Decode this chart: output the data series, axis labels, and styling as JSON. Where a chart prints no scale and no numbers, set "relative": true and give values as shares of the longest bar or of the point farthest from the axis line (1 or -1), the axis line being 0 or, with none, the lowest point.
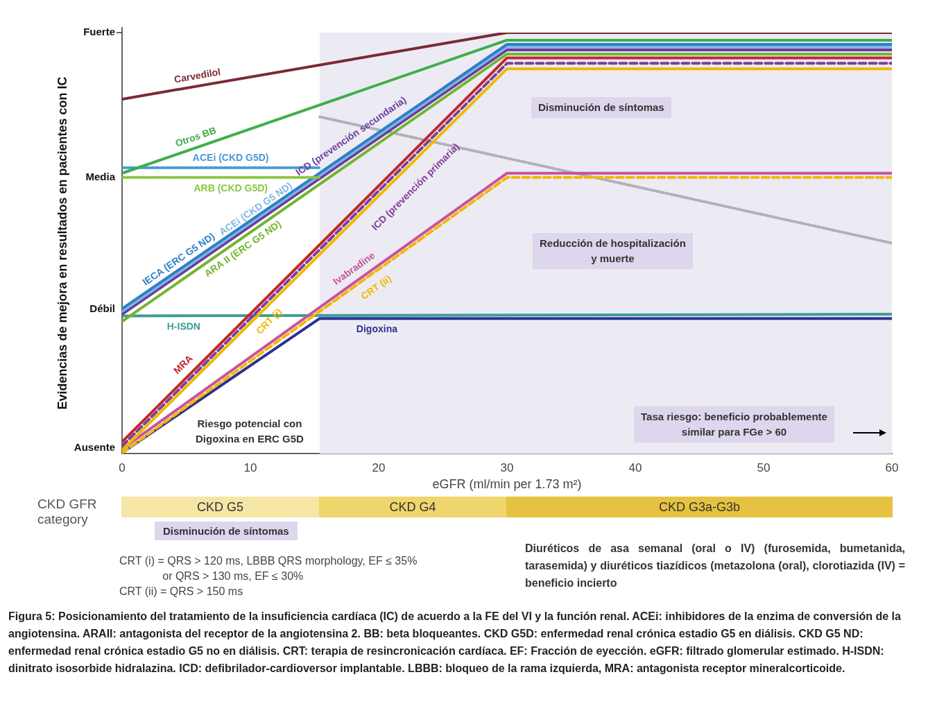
{
  "chart_data": {
    "type": "line",
    "relative": true,
    "ylabel": "Evidencias de mejora en resultados en pacientes con IC",
    "xlabel": "eGFR (ml/min per 1.73 m²)",
    "xlim": [
      0,
      60
    ],
    "xticks": [
      0,
      10,
      20,
      30,
      40,
      50,
      60
    ],
    "grid": false,
    "legend": false,
    "marker": "none",
    "bands": [
      {
        "axis": "x",
        "from": 15.4,
        "to": 60,
        "color": "#ecebf3"
      }
    ],
    "series": [
      {
        "name": "Carvedilol",
        "color": "#7b2a35",
        "x": [
          0,
          30,
          60
        ],
        "values": [
          0.842,
          1.0,
          1.0
        ]
      },
      {
        "name": "Otros BB",
        "color": "#3fae49",
        "x": [
          0,
          30,
          60
        ],
        "values": [
          0.666,
          0.982,
          0.982
        ]
      },
      {
        "name": "ACEi (CKD G5D)",
        "color": "#4a9ad8",
        "x": [
          0,
          15.4
        ],
        "values": [
          0.679,
          0.679
        ],
        "line_style": "dotted"
      },
      {
        "name": "ARB (CKD G5D)",
        "color": "#8dc63f",
        "x": [
          0,
          15.4
        ],
        "values": [
          0.656,
          0.656
        ],
        "line_style": "dotted"
      },
      {
        "name": "IECA (ERC G5 ND)",
        "color": "#2f7fc8",
        "x": [
          0,
          30,
          60
        ],
        "values": [
          0.344,
          0.972,
          0.972
        ]
      },
      {
        "name": "ACEi (CKD G5 ND)",
        "color": "#7fb8e6",
        "x": [
          0,
          30,
          60
        ],
        "values": [
          0.338,
          0.966,
          0.966
        ]
      },
      {
        "name": "ICD (prevención secundaria)",
        "color": "#6a3d9a",
        "x": [
          0,
          30,
          60
        ],
        "values": [
          0.331,
          0.959,
          0.959
        ]
      },
      {
        "name": "ARA II (ERC G5 ND)",
        "color": "#72b52e",
        "x": [
          0,
          30,
          60
        ],
        "values": [
          0.314,
          0.949,
          0.949
        ]
      },
      {
        "name": "MRA",
        "color": "#c0272d",
        "x": [
          0,
          30,
          60
        ],
        "values": [
          0.028,
          0.94,
          0.94
        ]
      },
      {
        "name": "ICD (prevención primaria)",
        "color": "#7b3f98",
        "x": [
          0,
          30,
          60
        ],
        "values": [
          0.018,
          0.927,
          0.927
        ],
        "line_style": "dashed"
      },
      {
        "name": "CRT (i)",
        "color": "#f0b800",
        "x": [
          0,
          30,
          60
        ],
        "values": [
          0.008,
          0.914,
          0.914
        ]
      },
      {
        "name": "Ivabradine",
        "color": "#c9529c",
        "x": [
          0,
          30,
          60
        ],
        "values": [
          0.011,
          0.666,
          0.666
        ]
      },
      {
        "name": "CRT (ii)",
        "color": "#f0b800",
        "x": [
          0,
          30,
          60
        ],
        "values": [
          0.002,
          0.656,
          0.656
        ],
        "line_style": "dashed"
      },
      {
        "name": "H-ISDN",
        "color": "#3a9e96",
        "x": [
          0,
          60
        ],
        "values": [
          0.327,
          0.331
        ]
      },
      {
        "name": "Digoxina",
        "color": "#2e3192",
        "x": [
          0,
          15.4,
          60
        ],
        "values": [
          0.002,
          0.321,
          0.321
        ]
      },
      {
        "color": "#b0b0b8",
        "x": [
          15.4,
          60
        ],
        "values": [
          0.8,
          0.5
        ],
        "line_style": "dotted"
      }
    ],
    "annotations": [
      "Disminución de síntomas",
      "Reducción de hospitalización\ny muerte",
      "Tasa riesgo: beneficio probablemente\nsimilar para FGe > 60",
      "Riesgo potencial con\nDigoxina en ERC G5D",
      "CKD GFR\ncategory",
      "CKD G5",
      "CKD G4",
      "CKD G3a-G3b",
      "Disminución de síntomas",
      "CRT (i) = QRS > 120 ms, LBBB QRS morphology, EF ≤ 35%\n              or QRS > 130 ms, EF ≤ 30%\nCRT (ii) = QRS > 150 ms",
      "Diuréticos de asa semanal (oral o IV) (furosemida, bumetanida, tarasemida) y diuréticos tiazídicos (metazolona (oral), clorotiazida (IV) = beneficio incierto",
      "Figura 5: Posicionamiento del tratamiento de la insuficiencia cardíaca (IC) de acuerdo a la FE del VI y la función renal. ACEi: inhibidores de la enzima de conversión de la angiotensina. ARAII: antagonista del receptor de la angiotensina 2. BB: beta bloqueantes. CKD G5D: enfermedad renal crónica estadio G5 en diálisis. CKD G5 ND: enfermedad renal crónica estadio G5 no en diálisis. CRT: terapia de resincronicación cardíaca. EF: Fracción de eyección. eGFR: filtrado glomerular estimado. H-ISDN: dinitrato isosorbide hidralazina. ICD: defibrilador-cardioversor implantable. LBBB: bloqueo de la rama izquierda, MRA: antagonista receptor mineralcorticoide.",
      "Fuerte",
      "Media",
      "Débil",
      "Ausente"
    ]
  }
}
